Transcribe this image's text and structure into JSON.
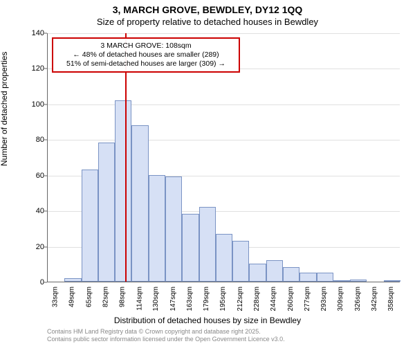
{
  "title_main": "3, MARCH GROVE, BEWDLEY, DY12 1QQ",
  "title_sub": "Size of property relative to detached houses in Bewdley",
  "y_axis_label": "Number of detached properties",
  "x_axis_label": "Distribution of detached houses by size in Bewdley",
  "license_line1": "Contains HM Land Registry data © Crown copyright and database right 2025.",
  "license_line2": "Contains public sector information licensed under the Open Government Licence v3.0.",
  "chart": {
    "type": "histogram",
    "ylim": [
      0,
      140
    ],
    "ytick_step": 20,
    "y_ticks": [
      0,
      20,
      40,
      60,
      80,
      100,
      120,
      140
    ],
    "categories": [
      "33sqm",
      "49sqm",
      "65sqm",
      "82sqm",
      "98sqm",
      "114sqm",
      "130sqm",
      "147sqm",
      "163sqm",
      "179sqm",
      "195sqm",
      "212sqm",
      "228sqm",
      "244sqm",
      "260sqm",
      "277sqm",
      "293sqm",
      "309sqm",
      "326sqm",
      "342sqm",
      "358sqm"
    ],
    "values": [
      0,
      2,
      63,
      78,
      102,
      88,
      60,
      59,
      38,
      42,
      27,
      23,
      10,
      12,
      8,
      5,
      5,
      0.5,
      1,
      0,
      0.5
    ],
    "bar_fill": "#d6e0f5",
    "bar_border": "#7a93c4",
    "grid_color": "#e0e0e0",
    "axis_color": "#666666",
    "tick_fontsize": 10,
    "label_fontsize": 12,
    "title_fontsize": 14,
    "background_color": "#ffffff",
    "marker": {
      "category_index": 4,
      "color": "#cc0000",
      "annotation_lines": [
        "3 MARCH GROVE: 108sqm",
        "← 48% of detached houses are smaller (289)",
        "51% of semi-detached houses are larger (309) →"
      ],
      "box_border": "#cc0000",
      "box_fontsize": 10.5
    }
  }
}
